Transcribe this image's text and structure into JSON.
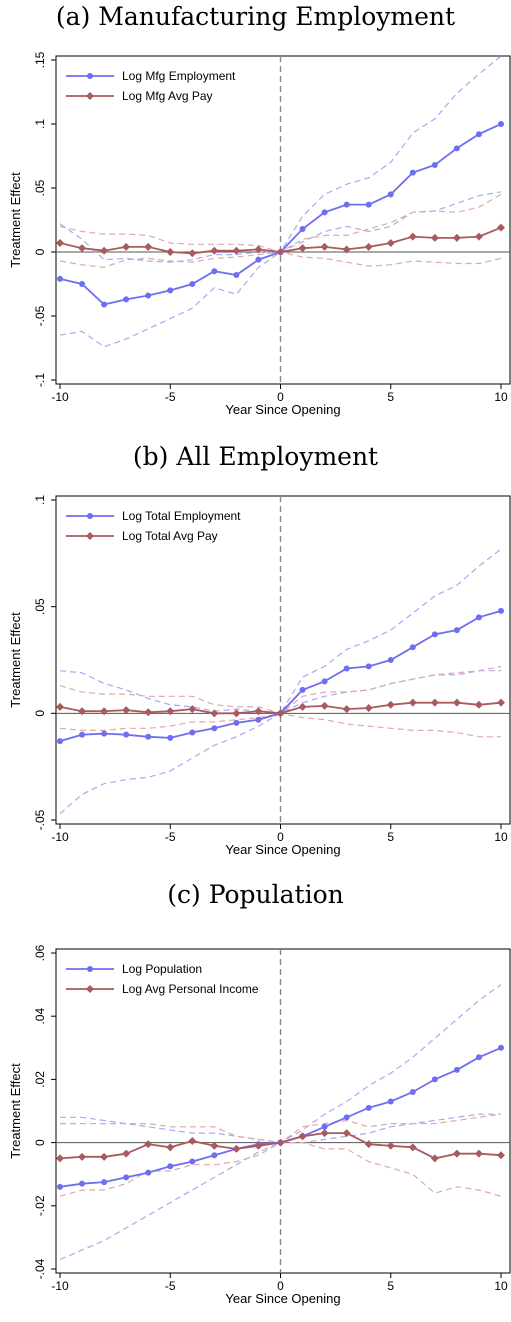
{
  "chart_data": [
    {
      "type": "line",
      "title": "(a) Manufacturing Employment",
      "xlabel": "Year Since Opening",
      "ylabel": "Treatment Effect",
      "xlim": [
        -10,
        10
      ],
      "ylim": [
        -0.1,
        0.15
      ],
      "xticks": [
        -10,
        -5,
        0,
        5,
        10
      ],
      "yticks": [
        -0.1,
        -0.05,
        0,
        0.05,
        0.1,
        0.15
      ],
      "ytick_labels": [
        "-.1",
        "-.05",
        "0",
        ".05",
        ".1",
        ".15"
      ],
      "x": [
        -10,
        -9,
        -8,
        -7,
        -6,
        -5,
        -4,
        -3,
        -2,
        -1,
        0,
        1,
        2,
        3,
        4,
        5,
        6,
        7,
        8,
        9,
        10
      ],
      "legend_position": "top-left",
      "series": [
        {
          "name": "Log Mfg Employment",
          "color": "#6e6ef0",
          "marker": "circle",
          "values": [
            -0.021,
            -0.025,
            -0.041,
            -0.037,
            -0.034,
            -0.03,
            -0.025,
            -0.015,
            -0.018,
            -0.006,
            0.0,
            0.018,
            0.031,
            0.037,
            0.037,
            0.045,
            0.062,
            0.068,
            0.081,
            0.092,
            0.1
          ],
          "ci_lower": [
            -0.065,
            -0.062,
            -0.074,
            -0.068,
            -0.06,
            -0.052,
            -0.044,
            -0.028,
            -0.033,
            -0.012,
            0.0,
            0.008,
            0.016,
            0.02,
            0.016,
            0.02,
            0.031,
            0.032,
            0.038,
            0.044,
            0.047
          ],
          "ci_upper": [
            0.022,
            0.01,
            -0.006,
            -0.005,
            -0.007,
            -0.008,
            -0.006,
            -0.002,
            -0.002,
            0.0,
            0.0,
            0.028,
            0.045,
            0.053,
            0.058,
            0.07,
            0.093,
            0.104,
            0.124,
            0.139,
            0.153
          ]
        },
        {
          "name": "Log Mfg Avg Pay",
          "color": "#a85a5e",
          "marker": "diamond",
          "values": [
            0.007,
            0.003,
            0.001,
            0.004,
            0.004,
            0.0,
            -0.001,
            0.001,
            0.001,
            0.002,
            0.0,
            0.003,
            0.004,
            0.002,
            0.004,
            0.007,
            0.012,
            0.011,
            0.011,
            0.012,
            0.019
          ],
          "ci_lower": [
            -0.007,
            -0.01,
            -0.012,
            -0.006,
            -0.005,
            -0.007,
            -0.008,
            -0.005,
            -0.004,
            -0.002,
            0.0,
            -0.004,
            -0.005,
            -0.008,
            -0.011,
            -0.01,
            -0.007,
            -0.008,
            -0.009,
            -0.009,
            -0.005
          ],
          "ci_upper": [
            0.02,
            0.016,
            0.014,
            0.014,
            0.013,
            0.007,
            0.006,
            0.006,
            0.006,
            0.005,
            0.0,
            0.01,
            0.013,
            0.013,
            0.018,
            0.023,
            0.031,
            0.032,
            0.031,
            0.035,
            0.045
          ]
        }
      ]
    },
    {
      "type": "line",
      "title": "(b) All Employment",
      "xlabel": "Year Since Opening",
      "ylabel": "Treatment Effect",
      "xlim": [
        -10,
        10
      ],
      "ylim": [
        -0.05,
        0.1
      ],
      "xticks": [
        -10,
        -5,
        0,
        5,
        10
      ],
      "yticks": [
        -0.05,
        0,
        0.05,
        0.1
      ],
      "ytick_labels": [
        "-.05",
        "0",
        ".05",
        ".1"
      ],
      "x": [
        -10,
        -9,
        -8,
        -7,
        -6,
        -5,
        -4,
        -3,
        -2,
        -1,
        0,
        1,
        2,
        3,
        4,
        5,
        6,
        7,
        8,
        9,
        10
      ],
      "legend_position": "top-left",
      "series": [
        {
          "name": "Log Total Employment",
          "color": "#6e6ef0",
          "marker": "circle",
          "values": [
            -0.013,
            -0.01,
            -0.0095,
            -0.01,
            -0.011,
            -0.0115,
            -0.009,
            -0.007,
            -0.0045,
            -0.003,
            0.0,
            0.011,
            0.015,
            0.021,
            0.022,
            0.025,
            0.031,
            0.037,
            0.039,
            0.045,
            0.048
          ],
          "ci_lower": [
            -0.047,
            -0.038,
            -0.033,
            -0.031,
            -0.03,
            -0.027,
            -0.021,
            -0.015,
            -0.011,
            -0.006,
            0.0,
            0.005,
            0.008,
            0.01,
            0.011,
            0.014,
            0.016,
            0.018,
            0.018,
            0.02,
            0.02
          ],
          "ci_upper": [
            0.02,
            0.019,
            0.014,
            0.011,
            0.007,
            0.004,
            0.003,
            0.001,
            0.002,
            0.001,
            0.0,
            0.017,
            0.022,
            0.03,
            0.034,
            0.039,
            0.047,
            0.055,
            0.06,
            0.069,
            0.077
          ]
        },
        {
          "name": "Log Total Avg Pay",
          "color": "#a85a5e",
          "marker": "diamond",
          "values": [
            0.003,
            0.001,
            0.001,
            0.0015,
            0.0005,
            0.001,
            0.002,
            0.0,
            0.0,
            0.001,
            0.0,
            0.003,
            0.0035,
            0.002,
            0.0025,
            0.004,
            0.005,
            0.005,
            0.005,
            0.004,
            0.005
          ],
          "ci_lower": [
            -0.007,
            -0.008,
            -0.008,
            -0.007,
            -0.007,
            -0.006,
            -0.004,
            -0.004,
            -0.003,
            -0.002,
            0.0,
            -0.002,
            -0.003,
            -0.005,
            -0.006,
            -0.007,
            -0.008,
            -0.008,
            -0.009,
            -0.011,
            -0.011
          ],
          "ci_upper": [
            0.013,
            0.01,
            0.009,
            0.009,
            0.008,
            0.008,
            0.008,
            0.004,
            0.003,
            0.003,
            0.0,
            0.008,
            0.01,
            0.01,
            0.011,
            0.014,
            0.016,
            0.018,
            0.019,
            0.02,
            0.022
          ]
        }
      ]
    },
    {
      "type": "line",
      "title": "(c) Population",
      "xlabel": "Year Since Opening",
      "ylabel": "Treatment Effect",
      "xlim": [
        -10,
        10
      ],
      "ylim": [
        -0.04,
        0.06
      ],
      "xticks": [
        -10,
        -5,
        0,
        5,
        10
      ],
      "yticks": [
        -0.04,
        -0.02,
        0,
        0.02,
        0.04,
        0.06
      ],
      "ytick_labels": [
        "-.04",
        "-.02",
        "0",
        ".02",
        ".04",
        ".06"
      ],
      "x": [
        -10,
        -9,
        -8,
        -7,
        -6,
        -5,
        -4,
        -3,
        -2,
        -1,
        0,
        1,
        2,
        3,
        4,
        5,
        6,
        7,
        8,
        9,
        10
      ],
      "legend_position": "top-left",
      "series": [
        {
          "name": "Log Population",
          "color": "#6e6ef0",
          "marker": "circle",
          "values": [
            -0.014,
            -0.013,
            -0.0125,
            -0.011,
            -0.0095,
            -0.0075,
            -0.006,
            -0.004,
            -0.002,
            -0.0005,
            0.0,
            0.002,
            0.005,
            0.008,
            0.011,
            0.013,
            0.016,
            0.02,
            0.023,
            0.027,
            0.03
          ],
          "ci_lower": [
            -0.037,
            -0.034,
            -0.031,
            -0.027,
            -0.023,
            -0.019,
            -0.015,
            -0.011,
            -0.007,
            -0.003,
            0.0,
            0.0,
            0.001,
            0.002,
            0.003,
            0.005,
            0.006,
            0.007,
            0.008,
            0.009,
            0.009
          ],
          "ci_upper": [
            0.008,
            0.008,
            0.007,
            0.006,
            0.005,
            0.004,
            0.003,
            0.003,
            0.002,
            0.001,
            0.0,
            0.004,
            0.009,
            0.013,
            0.018,
            0.022,
            0.027,
            0.033,
            0.039,
            0.045,
            0.05
          ]
        },
        {
          "name": "Log Avg Personal Income",
          "color": "#a85a5e",
          "marker": "diamond",
          "values": [
            -0.005,
            -0.0045,
            -0.0045,
            -0.0035,
            -0.0005,
            -0.0015,
            0.0005,
            -0.001,
            -0.002,
            -0.001,
            0.0,
            0.002,
            0.003,
            0.003,
            -0.0005,
            -0.001,
            -0.0015,
            -0.005,
            -0.0035,
            -0.0035,
            -0.004
          ],
          "ci_lower": [
            -0.017,
            -0.015,
            -0.015,
            -0.013,
            -0.009,
            -0.009,
            -0.007,
            -0.007,
            -0.006,
            -0.004,
            0.0,
            0.0,
            -0.002,
            -0.002,
            -0.006,
            -0.008,
            -0.01,
            -0.016,
            -0.014,
            -0.015,
            -0.017
          ],
          "ci_upper": [
            0.006,
            0.006,
            0.006,
            0.006,
            0.006,
            0.005,
            0.005,
            0.005,
            0.002,
            0.001,
            0.0,
            0.005,
            0.006,
            0.007,
            0.005,
            0.006,
            0.006,
            0.006,
            0.007,
            0.008,
            0.009
          ]
        }
      ]
    }
  ]
}
